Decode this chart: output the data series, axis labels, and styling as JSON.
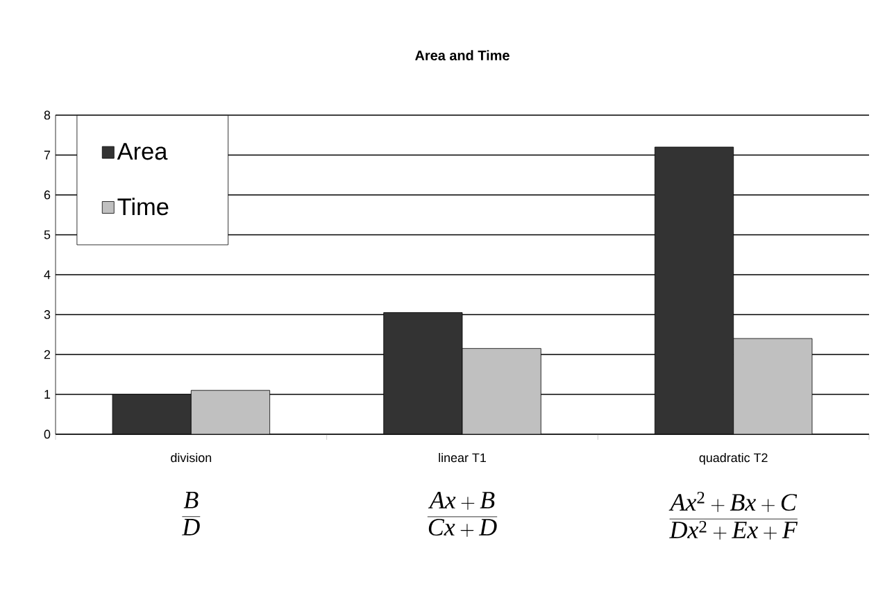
{
  "chart_data": {
    "type": "bar",
    "title": "Area and Time",
    "categories": [
      "division",
      "linear T1",
      "quadratic T2"
    ],
    "series": [
      {
        "name": "Area",
        "color": "#333333",
        "values": [
          1.0,
          3.05,
          7.2
        ]
      },
      {
        "name": "Time",
        "color": "#c0c0c0",
        "values": [
          1.1,
          2.15,
          2.4
        ]
      }
    ],
    "ylim": [
      0,
      8
    ],
    "yticks": [
      0,
      1,
      2,
      3,
      4,
      5,
      6,
      7,
      8
    ],
    "grid": "y",
    "legend": "top left",
    "annotations": [
      "\\frac{B}{D}",
      "\\frac{Ax+B}{Cx+D}",
      "\\frac{Ax^2+Bx+C}{Dx^2+Ex+F}"
    ]
  }
}
